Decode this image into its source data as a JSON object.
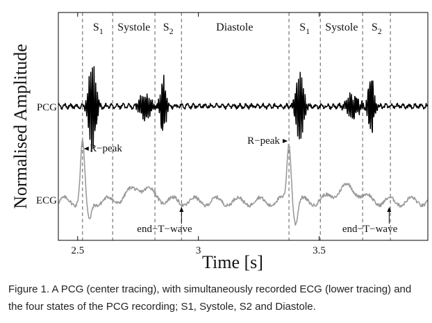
{
  "chart_data": {
    "type": "line",
    "ylabel": "Normalised Amplitude",
    "xlabel": "Time [s]",
    "xlim": [
      2.42,
      3.95
    ],
    "x_ticks": [
      2.5,
      3,
      3.5
    ],
    "x_tick_labels": [
      "2.5",
      "3",
      "3.5"
    ],
    "grid": false,
    "series": [
      {
        "name": "PCG",
        "color": "#000000"
      },
      {
        "name": "ECG",
        "color": "#9a9a9a"
      }
    ],
    "state_boundaries": [
      2.52,
      2.645,
      2.82,
      2.93,
      3.375,
      3.505,
      3.68,
      3.795
    ],
    "states": [
      {
        "label": "S",
        "sub": "1",
        "x": 2.585
      },
      {
        "label": "Systole",
        "sub": "",
        "x": 2.733
      },
      {
        "label": "S",
        "sub": "2",
        "x": 2.875
      },
      {
        "label": "Diastole",
        "sub": "",
        "x": 3.15
      },
      {
        "label": "S",
        "sub": "1",
        "x": 3.44
      },
      {
        "label": "Systole",
        "sub": "",
        "x": 3.593
      },
      {
        "label": "S",
        "sub": "2",
        "x": 3.738
      }
    ],
    "annotations": [
      {
        "text": "R−peak",
        "target_x": 2.52,
        "arrow": "left",
        "text_x": 2.617
      },
      {
        "text": "R−peak",
        "target_x": 3.375,
        "arrow": "right",
        "text_x": 3.27
      },
      {
        "text": "end−T−wave",
        "target_x": 2.93,
        "arrow": "up",
        "text_x": 2.86
      },
      {
        "text": "end−T−wave",
        "target_x": 3.79,
        "arrow": "up",
        "text_x": 3.71
      }
    ],
    "events": {
      "r_peaks": [
        2.52,
        3.375
      ],
      "s1": [
        2.56,
        3.42
      ],
      "s2": [
        2.855,
        3.715
      ]
    }
  },
  "caption": "Figure 1. A PCG (center tracing), with simultaneously recorded ECG (lower tracing) and the four states of the PCG recording; S1, Systole, S2 and Diastole."
}
